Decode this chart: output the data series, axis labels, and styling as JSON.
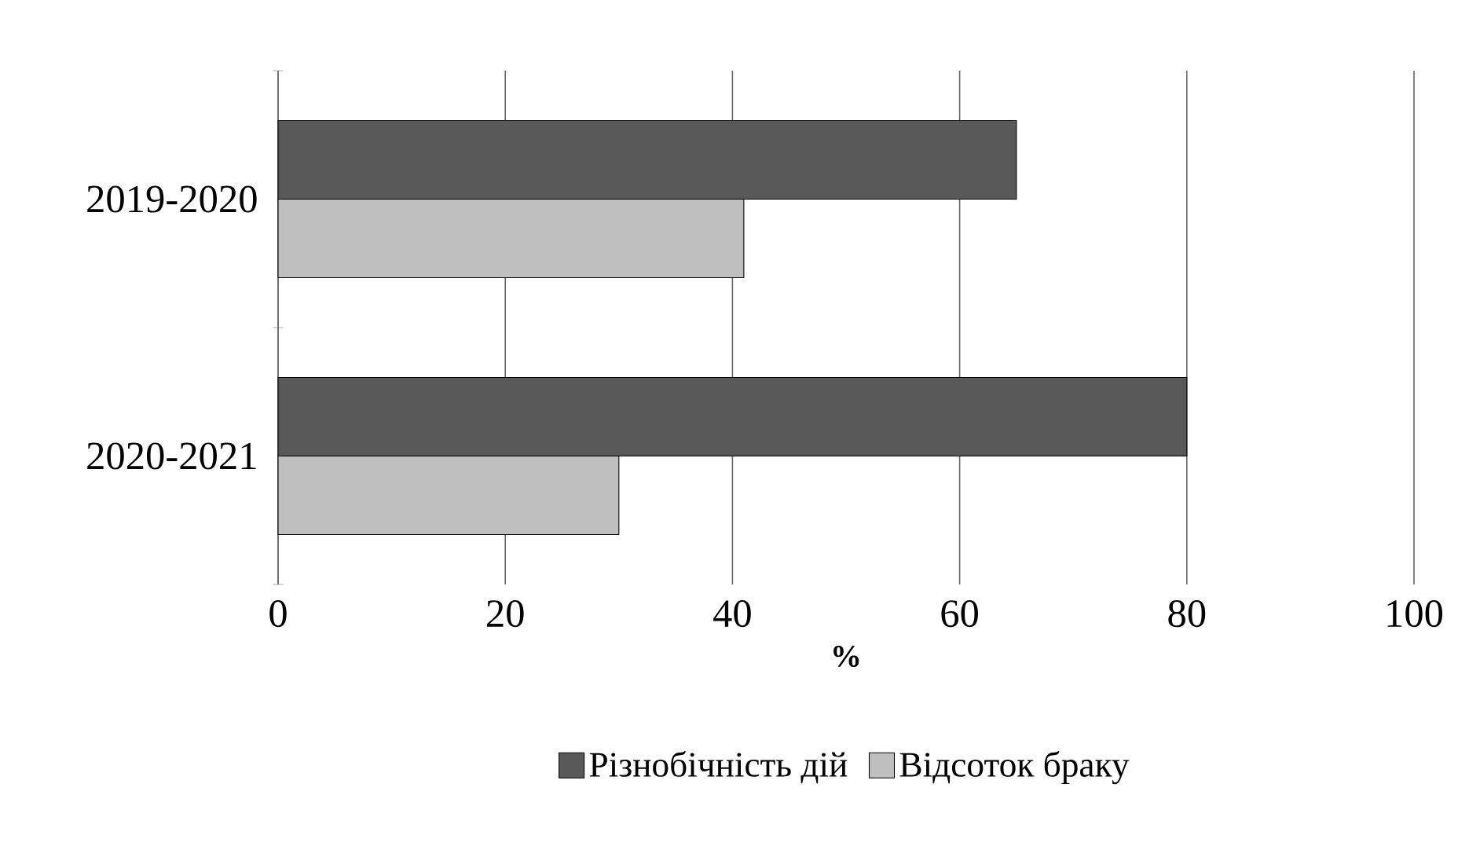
{
  "chart_data": {
    "type": "bar",
    "orientation": "horizontal",
    "xlabel": "**%**",
    "categories": [
      "2019-2020",
      "2020-2021"
    ],
    "series": [
      {
        "name": "Різнобічність дій",
        "color": "#595959",
        "values": [
          65,
          80
        ]
      },
      {
        "name": "Відсоток браку",
        "color": "#bfbfbf",
        "values": [
          41,
          30
        ]
      }
    ],
    "xlim": [
      0,
      100
    ],
    "xticks": [
      0,
      20,
      40,
      60,
      80,
      100
    ],
    "grid": "x",
    "legend": "bottom"
  }
}
